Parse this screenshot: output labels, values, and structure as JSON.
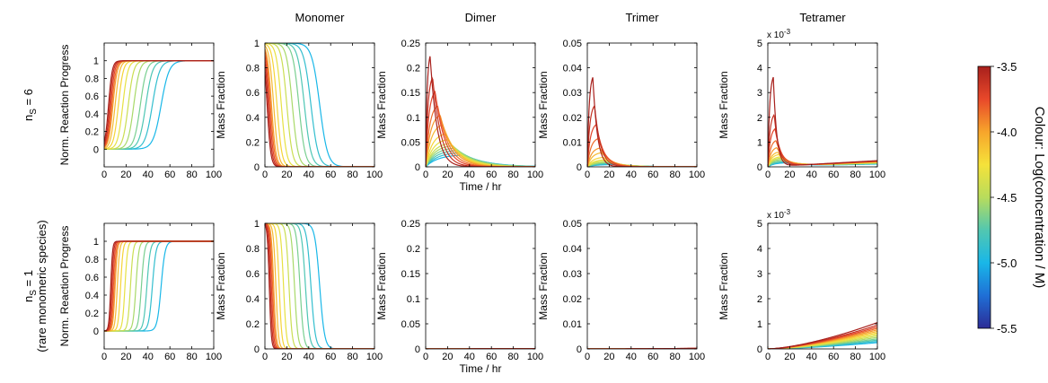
{
  "figure": {
    "column_titles": [
      "Monomer",
      "Dimer",
      "Trimer",
      "Tetramer"
    ],
    "row_labels": [
      {
        "main": "n",
        "sub": "S",
        "rest": " = 6",
        "extra": ""
      },
      {
        "main": "n",
        "sub": "S",
        "rest": " = 1",
        "extra": "(rare monomeric species)"
      }
    ],
    "colorbar": {
      "label": "Colour: Log(concentration / M)",
      "ticks": [
        "-3.5",
        "-4.0",
        "-4.5",
        "-5.0",
        "-5.5"
      ],
      "range": [
        -5.5,
        -3.5
      ],
      "colormap": [
        "#2c2c96",
        "#1f6fd6",
        "#19b7e8",
        "#52c7b0",
        "#b8dc5c",
        "#f5e23a",
        "#f7a52b",
        "#e8482a",
        "#a8201c"
      ]
    },
    "exponent_label": {
      "base": "x 10",
      "exp": "-3"
    }
  },
  "chart_data": [
    {
      "panel": "row1-progress",
      "type": "line",
      "title": "",
      "ylabel": "Norm. Reaction Progress",
      "xlabel": "",
      "xlim": [
        0,
        100
      ],
      "ylim": [
        -0.2,
        1.2
      ],
      "xticks": [
        "0",
        "20",
        "40",
        "60",
        "80",
        "100"
      ],
      "yticks": [
        "0",
        "0.2",
        "0.4",
        "0.6",
        "0.8",
        "1"
      ],
      "series_note": "14 sigmoid curves rising from 0 to 1, midpoints from ~4 hr (red, -3.5) to ~52 hr (blue, -5.0)",
      "midpoints": [
        4,
        5,
        6,
        7,
        8,
        10,
        13,
        17,
        22,
        27,
        33,
        38,
        44,
        52
      ]
    },
    {
      "panel": "row1-monomer",
      "type": "line",
      "title": "Monomer",
      "ylabel": "Mass Fraction",
      "xlabel": "",
      "xlim": [
        0,
        100
      ],
      "ylim": [
        0,
        1
      ],
      "xticks": [
        "0",
        "20",
        "40",
        "60",
        "80",
        "100"
      ],
      "yticks": [
        "0",
        "0.2",
        "0.4",
        "0.6",
        "0.8",
        "1"
      ],
      "series_note": "14 decaying curves from 1 to 0, drop points from ~3 hr to ~55 hr"
    },
    {
      "panel": "row1-dimer",
      "type": "line",
      "title": "Dimer",
      "ylabel": "Mass Fraction",
      "xlabel": "Time / hr",
      "xlim": [
        0,
        100
      ],
      "ylim": [
        0,
        0.25
      ],
      "xticks": [
        "0",
        "20",
        "40",
        "60",
        "80",
        "100"
      ],
      "yticks": [
        "0",
        "0.05",
        "0.1",
        "0.15",
        "0.2",
        "0.25"
      ],
      "peaks": [
        0.235,
        0.19,
        0.16,
        0.13,
        0.11,
        0.09,
        0.07,
        0.058,
        0.05,
        0.045,
        0.04,
        0.035,
        0.03,
        0.025
      ]
    },
    {
      "panel": "row1-trimer",
      "type": "line",
      "title": "Trimer",
      "ylabel": "Mass Fraction",
      "xlabel": "",
      "xlim": [
        0,
        100
      ],
      "ylim": [
        0,
        0.05
      ],
      "xticks": [
        "0",
        "20",
        "40",
        "60",
        "80",
        "100"
      ],
      "yticks": [
        "0",
        "0.01",
        "0.02",
        "0.03",
        "0.04",
        "0.05"
      ],
      "peaks": [
        0.038,
        0.026,
        0.018,
        0.012,
        0.008,
        0.006,
        0.004,
        0.003,
        0.0025,
        0.002,
        0.0018,
        0.0015,
        0.0012,
        0.001
      ]
    },
    {
      "panel": "row1-tetramer",
      "type": "line",
      "title": "Tetramer",
      "ylabel": "Mass Fraction",
      "xlabel": "",
      "xlim": [
        0,
        100
      ],
      "ylim": [
        0,
        5
      ],
      "y_multiplier": "x 10^-3",
      "xticks": [
        "0",
        "20",
        "40",
        "60",
        "80",
        "100"
      ],
      "yticks": [
        "0",
        "1",
        "2",
        "3",
        "4",
        "5"
      ],
      "peaks": [
        3.8,
        2.2,
        1.6,
        1.1,
        0.8,
        0.6,
        0.5,
        0.4,
        0.35,
        0.3,
        0.25,
        0.2,
        0.18,
        0.15
      ]
    },
    {
      "panel": "row2-progress",
      "type": "line",
      "title": "",
      "ylabel": "Norm. Reaction Progress",
      "xlabel": "",
      "xlim": [
        0,
        100
      ],
      "ylim": [
        -0.2,
        1.2
      ],
      "xticks": [
        "0",
        "20",
        "40",
        "60",
        "80",
        "100"
      ],
      "yticks": [
        "0",
        "0.2",
        "0.4",
        "0.6",
        "0.8",
        "1"
      ],
      "midpoints": [
        6,
        7,
        8,
        9,
        10,
        12,
        15,
        19,
        24,
        29,
        34,
        39,
        44,
        52
      ]
    },
    {
      "panel": "row2-monomer",
      "type": "line",
      "title": "",
      "ylabel": "Mass Fraction",
      "xlabel": "",
      "xlim": [
        0,
        100
      ],
      "ylim": [
        0,
        1
      ],
      "xticks": [
        "0",
        "20",
        "40",
        "60",
        "80",
        "100"
      ],
      "yticks": [
        "0",
        "0.2",
        "0.4",
        "0.6",
        "0.8",
        "1"
      ]
    },
    {
      "panel": "row2-dimer",
      "type": "line",
      "title": "",
      "ylabel": "Mass Fraction",
      "xlabel": "Time / hr",
      "xlim": [
        0,
        100
      ],
      "ylim": [
        0,
        0.25
      ],
      "xticks": [
        "0",
        "20",
        "40",
        "60",
        "80",
        "100"
      ],
      "yticks": [
        "0",
        "0.05",
        "0.1",
        "0.15",
        "0.2",
        "0.25"
      ],
      "series_note": "all curves near zero"
    },
    {
      "panel": "row2-trimer",
      "type": "line",
      "title": "",
      "ylabel": "Mass Fraction",
      "xlabel": "",
      "xlim": [
        0,
        100
      ],
      "ylim": [
        0,
        0.05
      ],
      "xticks": [
        "0",
        "20",
        "40",
        "60",
        "80",
        "100"
      ],
      "yticks": [
        "0",
        "0.01",
        "0.02",
        "0.03",
        "0.04",
        "0.05"
      ],
      "series_note": "all curves near zero"
    },
    {
      "panel": "row2-tetramer",
      "type": "line",
      "title": "",
      "ylabel": "Mass Fraction",
      "xlabel": "",
      "xlim": [
        0,
        100
      ],
      "ylim": [
        0,
        5
      ],
      "y_multiplier": "x 10^-3",
      "xticks": [
        "0",
        "20",
        "40",
        "60",
        "80",
        "100"
      ],
      "yticks": [
        "0",
        "1",
        "2",
        "3",
        "4",
        "5"
      ],
      "end_values": [
        1.05,
        0.95,
        0.88,
        0.82,
        0.76,
        0.7,
        0.64,
        0.58,
        0.52,
        0.46,
        0.4,
        0.35,
        0.3,
        0.25
      ]
    }
  ]
}
